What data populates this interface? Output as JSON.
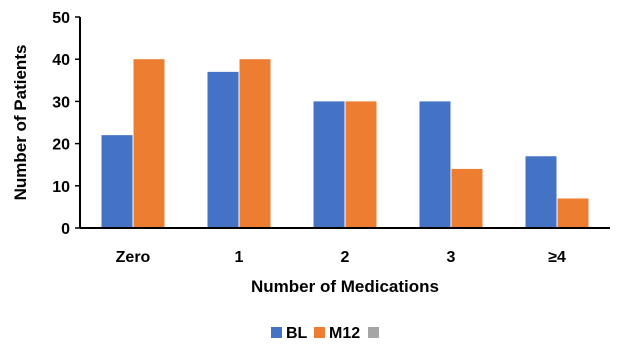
{
  "chart_data": {
    "type": "bar",
    "title": "",
    "xlabel": "Number of Medications",
    "ylabel": "Number of Patients",
    "categories": [
      "Zero",
      "1",
      "2",
      "3",
      "≥4"
    ],
    "series": [
      {
        "name": "BL",
        "color": "#4472C4",
        "values": [
          22,
          37,
          30,
          30,
          17
        ]
      },
      {
        "name": "M12",
        "color": "#ED7D31",
        "values": [
          40,
          40,
          30,
          14,
          7
        ]
      }
    ],
    "legend_extra_swatch_color": "#A5A5A5",
    "ylim": [
      0,
      50
    ],
    "yticks": [
      0,
      10,
      20,
      30,
      40,
      50
    ],
    "grid": false,
    "legend": "bottom"
  }
}
